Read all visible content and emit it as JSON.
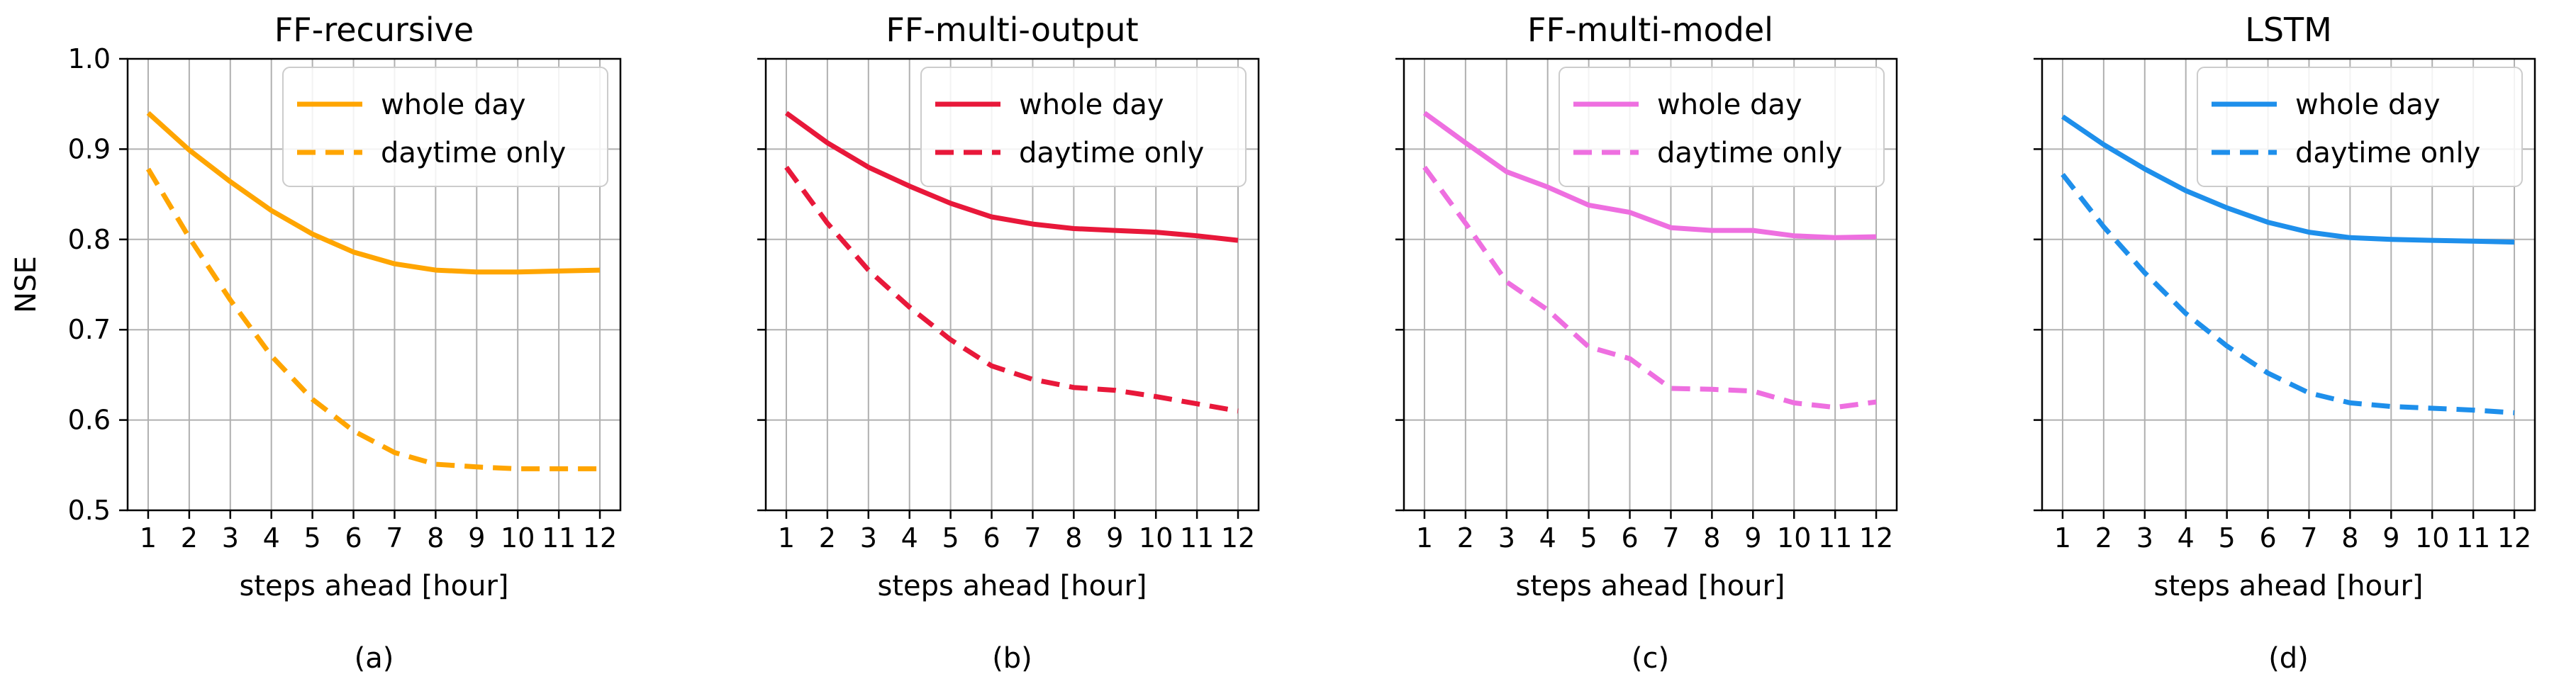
{
  "chart_data": [
    {
      "type": "line",
      "title": "FF-recursive",
      "panel_label": "(a)",
      "xlabel": "steps ahead [hour]",
      "ylabel": "NSE",
      "x": [
        1,
        2,
        3,
        4,
        5,
        6,
        7,
        8,
        9,
        10,
        11,
        12
      ],
      "xlim": [
        0.5,
        12.5
      ],
      "ylim": [
        0.5,
        1.0
      ],
      "yticks": [
        "0.5",
        "0.6",
        "0.7",
        "0.8",
        "0.9",
        "1.0"
      ],
      "grid": true,
      "legend_position": "top-right",
      "color": "#FFA500",
      "series": [
        {
          "name": "whole day",
          "style": "solid",
          "values": [
            0.94,
            0.899,
            0.864,
            0.832,
            0.806,
            0.786,
            0.773,
            0.766,
            0.764,
            0.764,
            0.765,
            0.766
          ]
        },
        {
          "name": "daytime only",
          "style": "dashed",
          "values": [
            0.878,
            0.802,
            0.733,
            0.671,
            0.623,
            0.588,
            0.564,
            0.551,
            0.548,
            0.546,
            0.546,
            0.546
          ]
        }
      ]
    },
    {
      "type": "line",
      "title": "FF-multi-output",
      "panel_label": "(b)",
      "xlabel": "steps ahead [hour]",
      "ylabel": "",
      "x": [
        1,
        2,
        3,
        4,
        5,
        6,
        7,
        8,
        9,
        10,
        11,
        12
      ],
      "xlim": [
        0.5,
        12.5
      ],
      "ylim": [
        0.5,
        1.0
      ],
      "yticks": [],
      "grid": true,
      "legend_position": "top-right",
      "color": "#E8183A",
      "series": [
        {
          "name": "whole day",
          "style": "solid",
          "values": [
            0.94,
            0.907,
            0.88,
            0.859,
            0.84,
            0.825,
            0.817,
            0.812,
            0.81,
            0.808,
            0.804,
            0.799
          ]
        },
        {
          "name": "daytime only",
          "style": "dashed",
          "values": [
            0.88,
            0.818,
            0.766,
            0.725,
            0.689,
            0.66,
            0.645,
            0.636,
            0.633,
            0.626,
            0.618,
            0.61
          ]
        }
      ]
    },
    {
      "type": "line",
      "title": "FF-multi-model",
      "panel_label": "(c)",
      "xlabel": "steps ahead [hour]",
      "ylabel": "",
      "x": [
        1,
        2,
        3,
        4,
        5,
        6,
        7,
        8,
        9,
        10,
        11,
        12
      ],
      "xlim": [
        0.5,
        12.5
      ],
      "ylim": [
        0.5,
        1.0
      ],
      "yticks": [],
      "grid": true,
      "legend_position": "top-right",
      "color": "#EE6FE0",
      "series": [
        {
          "name": "whole day",
          "style": "solid",
          "values": [
            0.94,
            0.907,
            0.875,
            0.858,
            0.838,
            0.83,
            0.813,
            0.81,
            0.81,
            0.804,
            0.802,
            0.803
          ]
        },
        {
          "name": "daytime only",
          "style": "dashed",
          "values": [
            0.88,
            0.818,
            0.753,
            0.722,
            0.681,
            0.668,
            0.635,
            0.634,
            0.632,
            0.619,
            0.614,
            0.62
          ]
        }
      ]
    },
    {
      "type": "line",
      "title": "LSTM",
      "panel_label": "(d)",
      "xlabel": "steps ahead [hour]",
      "ylabel": "",
      "x": [
        1,
        2,
        3,
        4,
        5,
        6,
        7,
        8,
        9,
        10,
        11,
        12
      ],
      "xlim": [
        0.5,
        12.5
      ],
      "ylim": [
        0.5,
        1.0
      ],
      "yticks": [],
      "grid": true,
      "legend_position": "top-right",
      "color": "#1E8FEB",
      "series": [
        {
          "name": "whole day",
          "style": "solid",
          "values": [
            0.936,
            0.905,
            0.878,
            0.854,
            0.835,
            0.819,
            0.808,
            0.802,
            0.8,
            0.799,
            0.798,
            0.797
          ]
        },
        {
          "name": "daytime only",
          "style": "dashed",
          "values": [
            0.872,
            0.814,
            0.763,
            0.718,
            0.682,
            0.652,
            0.63,
            0.619,
            0.615,
            0.613,
            0.611,
            0.608
          ]
        }
      ]
    }
  ]
}
